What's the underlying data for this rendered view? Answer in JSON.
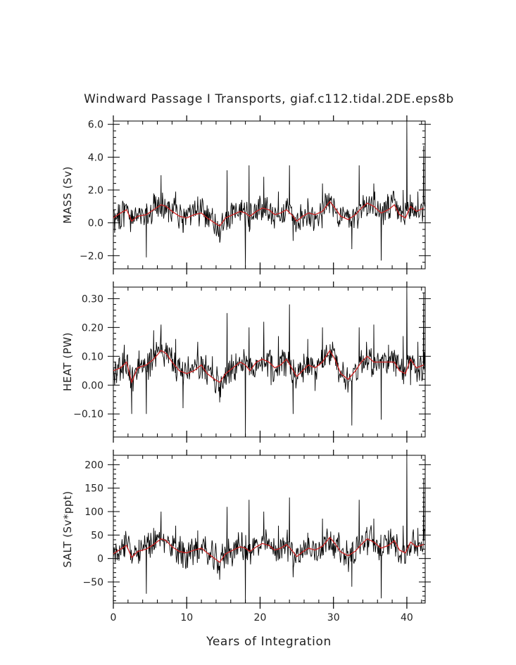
{
  "figure": {
    "title": "Windward Passage I Transports, giaf.c112.tidal.2DE.eps8b",
    "xlabel": "Years of Integration"
  },
  "chart_data": [
    {
      "type": "line",
      "title": "Windward Passage I Transports, giaf.c112.tidal.2DE.eps8b",
      "xlabel": "Years of Integration",
      "ylabel": "MASS (Sv)",
      "xlim": [
        0,
        42.5
      ],
      "ylim": [
        -2.8,
        6.2
      ],
      "x_ticks": [
        0,
        10,
        20,
        30,
        40
      ],
      "x_tick_labels": [
        "0",
        "10",
        "20",
        "30",
        "40"
      ],
      "y_ticks": [
        -2.0,
        0.0,
        2.0,
        4.0,
        6.0
      ],
      "y_tick_labels": [
        "−2.0",
        "0.0",
        "2.0",
        "4.0",
        "6.0"
      ],
      "grid": false,
      "series": [
        {
          "style": "monthly",
          "color": "#000000",
          "x": [
            0.5,
            1.5,
            2.5,
            3.5,
            4.5,
            5.5,
            6.5,
            7.5,
            8.5,
            9.5,
            10.5,
            11.5,
            12.5,
            13.5,
            14.5,
            15.5,
            16.5,
            17.5,
            18.0,
            18.5,
            19.5,
            20.5,
            21.5,
            22.5,
            23.5,
            24.0,
            24.5,
            25.5,
            26.5,
            27.5,
            28.5,
            29.5,
            30.5,
            31.5,
            32.5,
            33.5,
            34.5,
            35.5,
            36.5,
            37.5,
            38.5,
            39.5,
            40.0,
            40.5,
            41.5,
            42.3
          ],
          "y": [
            0.4,
            1.2,
            0.2,
            0.9,
            -2.1,
            1.8,
            2.9,
            1.3,
            1.9,
            -0.6,
            0.8,
            1.6,
            0.4,
            0.9,
            -1.2,
            3.2,
            0.9,
            1.4,
            -2.7,
            3.5,
            1.1,
            2.8,
            0.6,
            1.9,
            1.0,
            3.5,
            -1.1,
            0.8,
            1.5,
            0.2,
            2.4,
            1.3,
            0.9,
            0.3,
            -1.6,
            3.5,
            1.6,
            2.4,
            -2.3,
            1.6,
            0.7,
            2.0,
            6.2,
            0.4,
            1.9,
            4.7
          ]
        },
        {
          "style": "annual",
          "color": "#cc2222",
          "x": [
            0,
            1.0,
            1.8,
            2.5,
            3.3,
            4.5,
            5.5,
            6.5,
            7.2,
            8.0,
            9.0,
            10.0,
            11.0,
            12.0,
            12.8,
            13.8,
            14.5,
            15.3,
            16.3,
            17.3,
            18.0,
            18.6,
            19.5,
            20.3,
            21.2,
            22.0,
            22.8,
            23.6,
            24.3,
            25.0,
            25.8,
            26.6,
            27.5,
            28.5,
            29.5,
            30.2,
            31.0,
            32.0,
            33.0,
            33.8,
            34.6,
            35.5,
            36.5,
            37.5,
            38.3,
            39.0,
            39.8,
            40.5,
            41.3,
            42.3
          ],
          "y": [
            0.3,
            0.6,
            0.8,
            0.1,
            0.4,
            0.5,
            0.8,
            1.1,
            1.0,
            0.7,
            0.4,
            0.3,
            0.5,
            0.6,
            0.3,
            0.0,
            -0.2,
            0.3,
            0.5,
            0.7,
            0.6,
            0.4,
            0.7,
            0.9,
            0.8,
            0.5,
            0.6,
            0.8,
            0.5,
            0.1,
            0.4,
            0.6,
            0.5,
            0.7,
            1.3,
            0.9,
            0.4,
            0.2,
            0.5,
            0.9,
            1.2,
            1.0,
            0.6,
            0.8,
            1.1,
            0.5,
            0.3,
            1.0,
            0.7,
            0.9
          ]
        }
      ]
    },
    {
      "type": "line",
      "ylabel": "HEAT (PW)",
      "xlim": [
        0,
        42.5
      ],
      "ylim": [
        -0.18,
        0.34
      ],
      "x_ticks": [
        0,
        10,
        20,
        30,
        40
      ],
      "y_ticks": [
        -0.1,
        0.0,
        0.1,
        0.2,
        0.3
      ],
      "y_tick_labels": [
        "−0.10",
        "0.00",
        "0.10",
        "0.20",
        "0.30"
      ],
      "grid": false,
      "series": [
        {
          "style": "monthly",
          "color": "#000000",
          "x": [
            0.5,
            1.5,
            2.5,
            3.5,
            4.5,
            5.5,
            6.5,
            7.5,
            8.5,
            9.5,
            10.5,
            11.5,
            12.5,
            13.5,
            14.5,
            15.5,
            16.5,
            17.5,
            18.0,
            18.5,
            19.5,
            20.5,
            21.5,
            22.5,
            23.5,
            24.0,
            24.5,
            25.5,
            26.5,
            27.5,
            28.5,
            29.5,
            30.5,
            31.5,
            32.5,
            33.5,
            34.5,
            35.5,
            36.5,
            37.5,
            38.5,
            39.5,
            40.0,
            40.5,
            41.5,
            42.3
          ],
          "y": [
            0.04,
            0.14,
            -0.1,
            0.12,
            -0.1,
            0.19,
            0.21,
            0.1,
            0.16,
            -0.08,
            0.06,
            0.15,
            0.02,
            0.1,
            -0.06,
            0.25,
            0.02,
            0.08,
            -0.18,
            0.2,
            0.05,
            0.22,
            0.0,
            0.17,
            0.03,
            0.28,
            -0.1,
            0.04,
            0.16,
            -0.02,
            0.2,
            0.07,
            0.1,
            0.02,
            -0.14,
            0.2,
            0.15,
            0.21,
            -0.12,
            0.14,
            0.03,
            0.17,
            0.34,
            0.0,
            0.15,
            0.32
          ]
        },
        {
          "style": "annual",
          "color": "#cc2222",
          "x": [
            0,
            1.0,
            1.8,
            2.5,
            3.3,
            4.5,
            5.5,
            6.5,
            7.2,
            8.0,
            9.0,
            10.0,
            11.0,
            12.0,
            12.8,
            13.8,
            14.5,
            15.3,
            16.3,
            17.3,
            18.0,
            18.6,
            19.5,
            20.3,
            21.2,
            22.0,
            22.8,
            23.6,
            24.3,
            25.0,
            25.8,
            26.6,
            27.5,
            28.5,
            29.5,
            30.2,
            31.0,
            32.0,
            33.0,
            33.8,
            34.6,
            35.5,
            36.5,
            37.5,
            38.3,
            39.0,
            39.8,
            40.5,
            41.3,
            42.3
          ],
          "y": [
            0.05,
            0.06,
            0.08,
            0.01,
            0.06,
            0.07,
            0.09,
            0.12,
            0.11,
            0.08,
            0.05,
            0.04,
            0.05,
            0.07,
            0.04,
            0.02,
            0.01,
            0.04,
            0.06,
            0.08,
            0.07,
            0.05,
            0.08,
            0.09,
            0.08,
            0.06,
            0.07,
            0.09,
            0.06,
            0.03,
            0.05,
            0.07,
            0.06,
            0.08,
            0.12,
            0.09,
            0.04,
            0.02,
            0.05,
            0.08,
            0.1,
            0.08,
            0.08,
            0.08,
            0.08,
            0.05,
            0.04,
            0.09,
            0.06,
            0.07
          ]
        }
      ]
    },
    {
      "type": "line",
      "ylabel": "SALT (Sv*ppt)",
      "xlim": [
        0,
        42.5
      ],
      "ylim": [
        -95,
        220
      ],
      "x_ticks": [
        0,
        10,
        20,
        30,
        40
      ],
      "x_tick_labels": [
        "0",
        "10",
        "20",
        "30",
        "40"
      ],
      "y_ticks": [
        -50,
        0,
        50,
        100,
        150,
        200
      ],
      "y_tick_labels": [
        "−50",
        "0",
        "50",
        "100",
        "150",
        "200"
      ],
      "grid": false,
      "series": [
        {
          "style": "monthly",
          "color": "#000000",
          "x": [
            0.5,
            1.5,
            2.5,
            3.5,
            4.5,
            5.5,
            6.5,
            7.5,
            8.5,
            9.5,
            10.5,
            11.5,
            12.5,
            13.5,
            14.5,
            15.5,
            16.5,
            17.5,
            18.0,
            18.5,
            19.5,
            20.5,
            21.5,
            22.5,
            23.5,
            24.0,
            24.5,
            25.5,
            26.5,
            27.5,
            28.5,
            29.5,
            30.5,
            31.5,
            32.5,
            33.5,
            34.5,
            35.5,
            36.5,
            37.5,
            38.5,
            39.5,
            40.0,
            40.5,
            41.5,
            42.3
          ],
          "y": [
            20,
            50,
            5,
            40,
            -75,
            65,
            100,
            45,
            70,
            -20,
            30,
            60,
            15,
            35,
            -45,
            110,
            30,
            55,
            -95,
            125,
            40,
            100,
            20,
            70,
            35,
            130,
            -40,
            30,
            55,
            10,
            85,
            45,
            35,
            10,
            -60,
            125,
            55,
            85,
            -85,
            60,
            25,
            70,
            220,
            15,
            65,
            170
          ]
        },
        {
          "style": "annual",
          "color": "#cc2222",
          "x": [
            0,
            1.0,
            1.8,
            2.5,
            3.3,
            4.5,
            5.5,
            6.5,
            7.2,
            8.0,
            9.0,
            10.0,
            11.0,
            12.0,
            12.8,
            13.8,
            14.5,
            15.3,
            16.3,
            17.3,
            18.0,
            18.6,
            19.5,
            20.3,
            21.2,
            22.0,
            22.8,
            23.6,
            24.3,
            25.0,
            25.8,
            26.6,
            27.5,
            28.5,
            29.5,
            30.2,
            31.0,
            32.0,
            33.0,
            33.8,
            34.6,
            35.5,
            36.5,
            37.5,
            38.3,
            39.0,
            39.8,
            40.5,
            41.3,
            42.3
          ],
          "y": [
            10,
            20,
            28,
            2,
            15,
            20,
            30,
            42,
            38,
            25,
            15,
            12,
            18,
            22,
            12,
            0,
            -8,
            10,
            18,
            25,
            22,
            15,
            25,
            32,
            28,
            18,
            22,
            30,
            18,
            4,
            14,
            22,
            18,
            26,
            45,
            32,
            14,
            6,
            16,
            30,
            42,
            35,
            22,
            28,
            38,
            18,
            12,
            35,
            25,
            30
          ]
        }
      ]
    }
  ]
}
